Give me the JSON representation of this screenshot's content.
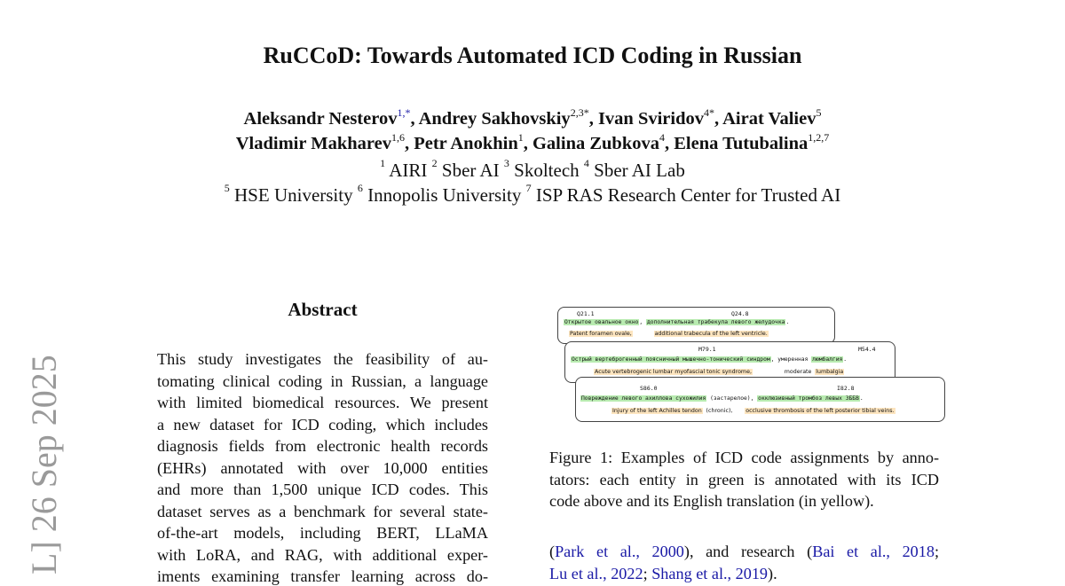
{
  "title": "RuCCoD: Towards Automated ICD Coding in Russian",
  "authors_line1": [
    {
      "name": "Aleksandr Nesterov",
      "sup": "1,*"
    },
    {
      "name": "Andrey Sakhovskiy",
      "sup": "2,3*"
    },
    {
      "name": "Ivan Sviridov",
      "sup": "4*"
    },
    {
      "name": "Airat Valiev",
      "sup": "5"
    }
  ],
  "authors_line2": [
    {
      "name": "Vladimir Makharev",
      "sup": "1,6"
    },
    {
      "name": "Petr Anokhin",
      "sup": "1"
    },
    {
      "name": "Galina Zubkova",
      "sup": "4"
    },
    {
      "name": "Elena Tutubalina",
      "sup": "1,2,7"
    }
  ],
  "affiliations_line1": [
    {
      "sup": "1",
      "name": "AIRI"
    },
    {
      "sup": "2",
      "name": "Sber AI"
    },
    {
      "sup": "3",
      "name": "Skoltech"
    },
    {
      "sup": "4",
      "name": "Sber AI Lab"
    }
  ],
  "affiliations_line2": [
    {
      "sup": "5",
      "name": "HSE University"
    },
    {
      "sup": "6",
      "name": "Innopolis University"
    },
    {
      "sup": "7",
      "name": "ISP RAS Research Center for Trusted AI"
    }
  ],
  "side_label": "L]  26 Sep 2025",
  "abstract": {
    "heading": "Abstract",
    "lines": [
      "This study investigates the feasibility of au-",
      "tomating clinical coding in Russian, a language",
      "with limited biomedical resources. We present",
      "a new dataset for ICD coding, which includes",
      "diagnosis fields from electronic health records",
      "(EHRs) annotated with over 10,000 entities",
      "and more than 1,500 unique ICD codes. This",
      "dataset serves as a benchmark for several state-",
      "of-the-art models, including BERT, LLaMA",
      "with LoRA, and RAG, with additional exper-",
      "iments examining transfer learning across do-"
    ]
  },
  "figure": {
    "examples": [
      {
        "codes": [
          "Q21.1",
          "Q24.8"
        ],
        "russian": [
          "Открытое овальное окно",
          ", ",
          "дополнительная трабекула левого желудочка",
          "."
        ],
        "english": [
          "Patent foramen ovale,",
          "additional trabecula of the left ventricle."
        ]
      },
      {
        "codes": [
          "M79.1",
          "M54.4"
        ],
        "russian": [
          "Острый вертеброгенный поясничный мышечно-тонический синдром",
          ", умеренная ",
          "люмбалгия",
          "."
        ],
        "english": [
          "Acute vertebrogenic lumbar myofascial tonic syndrome,",
          "moderate",
          "lumbalgia"
        ]
      },
      {
        "codes": [
          "S86.0",
          "I82.8"
        ],
        "russian": [
          "Повреждение левого ахиллова сухожилия",
          " (застарелое), ",
          "окклюзивный тромбоз левых ЗББВ",
          "."
        ],
        "english": [
          "Injury of the left Achilles tendon",
          "(chronic),",
          "occlusive thrombosis of the left posterior tibial veins."
        ]
      }
    ],
    "caption_lines": [
      "Figure 1: Examples of ICD code assignments by anno-",
      "tators: each entity in green is annotated with its ICD",
      "code above and its English translation (in yellow)."
    ]
  },
  "body": {
    "line1": {
      "cite1": "Park et al., 2000",
      "mid": "), and research (",
      "cite2": "Bai et al., 2018",
      "end": ";"
    },
    "line2": {
      "cite3": "Lu et al., 2022",
      "sep": "; ",
      "cite4": "Shang et al., 2019",
      "end": ")."
    }
  },
  "colors": {
    "entity_green": "#b8ebb0",
    "translation_yellow": "#fde5bf",
    "citation_blue": "#1a1aa6",
    "side_label_gray": "#9a9a9a"
  }
}
